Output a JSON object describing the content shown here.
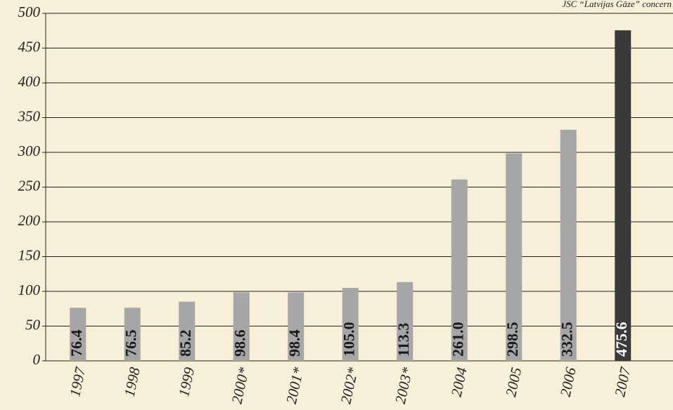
{
  "chart_data": {
    "type": "bar",
    "annotation": "JSC “Latvijas Gāze” concern",
    "categories": [
      "1997",
      "1998",
      "1999",
      "2000*",
      "2001*",
      "2002*",
      "2003*",
      "2004",
      "2005",
      "2006",
      "2007"
    ],
    "values": [
      76.4,
      76.5,
      85.2,
      98.6,
      98.4,
      105.0,
      113.3,
      261.0,
      298.5,
      332.5,
      475.6
    ],
    "value_labels": [
      "76.4",
      "76.5",
      "85.2",
      "98.6",
      "98.4",
      "105.0",
      "113.3",
      "261.0",
      "298.5",
      "332.5",
      "475.6"
    ],
    "colors": [
      "#a6a6a6",
      "#a6a6a6",
      "#a6a6a6",
      "#a6a6a6",
      "#a6a6a6",
      "#a6a6a6",
      "#a6a6a6",
      "#a6a6a6",
      "#a6a6a6",
      "#a6a6a6",
      "#3a3a3a"
    ],
    "ylim": [
      0,
      500
    ],
    "yticks": [
      0,
      50,
      100,
      150,
      200,
      250,
      300,
      350,
      400,
      450,
      500
    ],
    "grid": true
  }
}
